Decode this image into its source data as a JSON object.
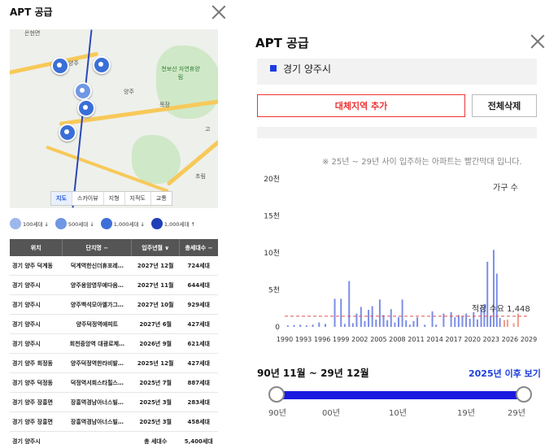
{
  "left_panel": {
    "title": "APT 공급",
    "map": {
      "labels": [
        "은현면",
        "양주",
        "천보산 자연휴양림",
        "양주",
        "목장",
        "초림",
        "고"
      ],
      "tabs": [
        "지도",
        "스카이뷰",
        "지형",
        "지적도",
        "교통"
      ],
      "active_tab": "지도"
    },
    "legend": [
      {
        "label": "100세대 ↓",
        "color": "#9db7ec"
      },
      {
        "label": "500세대 ↓",
        "color": "#6f97e3"
      },
      {
        "label": "1,000세대 ↓",
        "color": "#3e6fd9"
      },
      {
        "label": "1,000세대 ↑",
        "color": "#1f3fb8"
      }
    ],
    "table": {
      "headers": [
        "위치",
        "단지명 −",
        "입주년월 ∨",
        "총세대수 −"
      ],
      "rows": [
        [
          "경기 양주 덕계동",
          "덕계역한신더휴포레…",
          "2027년 12월",
          "724세대"
        ],
        [
          "경기 양주시",
          "양주옹암영무예다음…",
          "2027년 11월",
          "644세대"
        ],
        [
          "경기 양주시",
          "양주백석모아엘가그…",
          "2027년 10월",
          "929세대"
        ],
        [
          "경기 양주시",
          "양주덕정역에피트",
          "2027년 6월",
          "427세대"
        ],
        [
          "경기 양주시",
          "회천중앙역 대광로제…",
          "2026년 9월",
          "621세대"
        ],
        [
          "경기 양주 회정동",
          "양주덕정역한라비발…",
          "2025년 12월",
          "427세대"
        ],
        [
          "경기 양주 덕정동",
          "덕정역서희스타힐스…",
          "2025년 7월",
          "887세대"
        ],
        [
          "경기 양주 장흥면",
          "장흥역경남아너스빌…",
          "2025년 3월",
          "283세대"
        ],
        [
          "경기 양주 장흥면",
          "장흥역경남아너스빌…",
          "2025년 3월",
          "458세대"
        ]
      ],
      "footer": [
        "경기 양주시",
        "",
        "총 세대수",
        "5,400세대"
      ]
    }
  },
  "right_panel": {
    "title": "APT 공급",
    "region": "경기 양주시",
    "add_button": "대체지역 추가",
    "delete_button": "전체삭제",
    "note": "※ 25년 ~ 29년 사이 입주하는 아파트는 빨간막대 입니다.",
    "range_title": "90년 11월 ~ 29년 12월",
    "range_link": "2025년 이후 보기",
    "slider_labels": [
      "90년",
      "00년",
      "10년",
      "19년",
      "29년"
    ]
  },
  "chart_data": {
    "type": "bar",
    "legend": "가구 수",
    "ylim": [
      0,
      20000
    ],
    "y_ticks": [
      "0",
      "5천",
      "10천",
      "15천",
      "20천"
    ],
    "x_ticks": [
      "1990",
      "1993",
      "1996",
      "1999",
      "2002",
      "2005",
      "2008",
      "2011",
      "2014",
      "2017",
      "2020",
      "2023",
      "2026",
      "2029"
    ],
    "x_range": [
      1990,
      2029
    ],
    "reference_line": {
      "label": "적정 수요 1,448",
      "value": 1448,
      "color": "#e05050"
    },
    "series": [
      {
        "color": "#7b8ee6",
        "points": [
          [
            1990.5,
            200
          ],
          [
            1991.5,
            250
          ],
          [
            1992.5,
            300
          ],
          [
            1993.5,
            200
          ],
          [
            1994.5,
            300
          ],
          [
            1995.5,
            600
          ],
          [
            1996.5,
            400
          ],
          [
            1998.0,
            3800
          ],
          [
            1999.0,
            3800
          ],
          [
            1999.6,
            400
          ],
          [
            2000.3,
            6200
          ],
          [
            2000.9,
            500
          ],
          [
            2001.5,
            1800
          ],
          [
            2002.2,
            2700
          ],
          [
            2002.8,
            800
          ],
          [
            2003.4,
            2300
          ],
          [
            2004.0,
            2800
          ],
          [
            2004.6,
            1000
          ],
          [
            2005.2,
            3700
          ],
          [
            2005.8,
            1600
          ],
          [
            2006.4,
            900
          ],
          [
            2007.0,
            2400
          ],
          [
            2007.6,
            600
          ],
          [
            2008.2,
            1300
          ],
          [
            2008.8,
            3700
          ],
          [
            2009.4,
            900
          ],
          [
            2010.0,
            300
          ],
          [
            2010.6,
            800
          ],
          [
            2011.2,
            1300
          ],
          [
            2012.4,
            300
          ],
          [
            2013.6,
            2100
          ],
          [
            2014.2,
            300
          ],
          [
            2015.4,
            1800
          ],
          [
            2016.6,
            2000
          ],
          [
            2017.2,
            1300
          ],
          [
            2017.8,
            1600
          ],
          [
            2018.4,
            1400
          ],
          [
            2019.0,
            1800
          ],
          [
            2019.6,
            1100
          ],
          [
            2020.2,
            2000
          ],
          [
            2020.8,
            1000
          ],
          [
            2021.4,
            2600
          ],
          [
            2021.9,
            3100
          ],
          [
            2022.4,
            8800
          ],
          [
            2022.9,
            1500
          ],
          [
            2023.4,
            10400
          ],
          [
            2023.9,
            7200
          ],
          [
            2024.4,
            1200
          ]
        ]
      },
      {
        "color": "#f29a8a",
        "points": [
          [
            2025.1,
            900
          ],
          [
            2025.6,
            1000
          ],
          [
            2026.6,
            500
          ],
          [
            2027.3,
            1800
          ]
        ]
      }
    ]
  }
}
